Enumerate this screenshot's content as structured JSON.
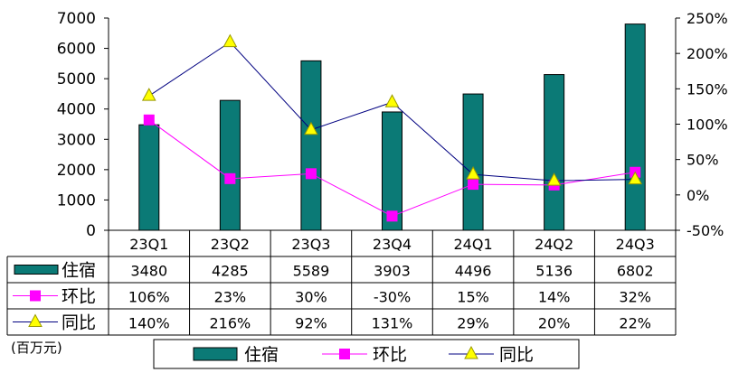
{
  "chart_data": {
    "type": "bar",
    "categories": [
      "23Q1",
      "23Q2",
      "23Q3",
      "23Q4",
      "24Q1",
      "24Q2",
      "24Q3"
    ],
    "left_axis": {
      "ylim": [
        0,
        7000
      ],
      "ticks": [
        "0",
        "1000",
        "2000",
        "3000",
        "4000",
        "5000",
        "6000",
        "7000"
      ]
    },
    "right_axis": {
      "ylim": [
        -50,
        250
      ],
      "ticks": [
        "-50%",
        "0%",
        "50%",
        "100%",
        "150%",
        "200%",
        "250%"
      ]
    },
    "series": [
      {
        "name": "住宿",
        "kind": "bar",
        "axis": "left",
        "color": "#0b7a76",
        "values": [
          3480,
          4285,
          5589,
          3903,
          4496,
          5136,
          6802
        ],
        "labels": [
          "3480",
          "4285",
          "5589",
          "3903",
          "4496",
          "5136",
          "6802"
        ]
      },
      {
        "name": "环比",
        "kind": "line",
        "axis": "right",
        "color": "#ff00ff",
        "marker": "square",
        "values": [
          106,
          23,
          30,
          -30,
          15,
          14,
          32
        ],
        "labels": [
          "106%",
          "23%",
          "30%",
          "-30%",
          "15%",
          "14%",
          "32%"
        ]
      },
      {
        "name": "同比",
        "kind": "line",
        "axis": "right",
        "color": "#000080",
        "marker": "triangle",
        "marker_color": "#ffff00",
        "values": [
          140,
          216,
          92,
          131,
          29,
          20,
          22
        ],
        "labels": [
          "140%",
          "216%",
          "92%",
          "131%",
          "29%",
          "20%",
          "22%"
        ]
      }
    ],
    "unit_label": "(百万元)",
    "legend_position": "bottom",
    "grid": false
  }
}
